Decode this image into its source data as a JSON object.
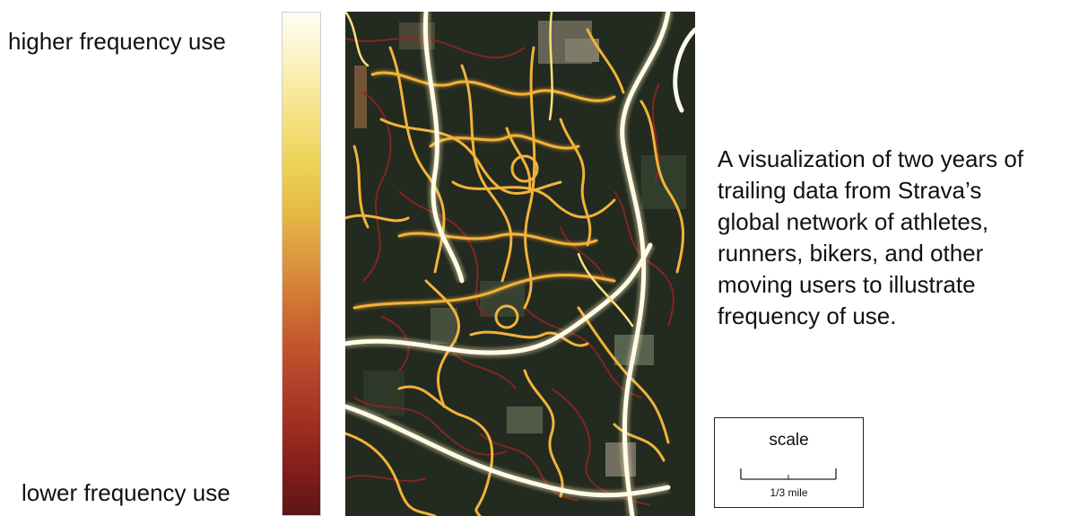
{
  "legend": {
    "high_label": "higher frequency use",
    "low_label": "lower frequency use",
    "ramp_colors": [
      "#fffef6",
      "#f6e690",
      "#e6b845",
      "#c65d2d",
      "#9b2a1f",
      "#5c1616"
    ]
  },
  "caption_lines": [
    "A visualization of two years of",
    "trailing data from Strava’s",
    "global network of athletes,",
    "runners, bikers, and other",
    "moving users to illustrate",
    "frequency of use."
  ],
  "scale": {
    "title": "scale",
    "distance_label": "1/3 mile"
  },
  "map_colors": {
    "background": "#232a20",
    "high_use": "#fffbe8",
    "mid_use": "#f2b33a",
    "low_use": "#8c2620"
  }
}
